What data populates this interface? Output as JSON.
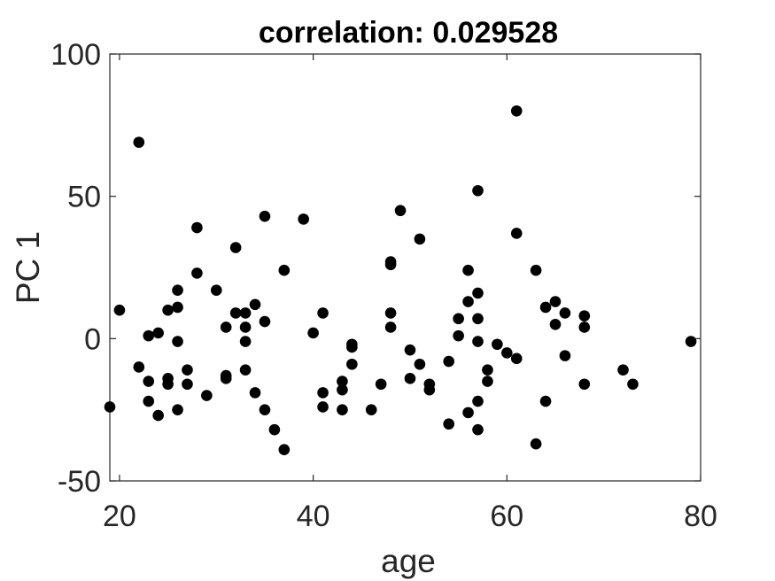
{
  "chart_data": {
    "type": "scatter",
    "title": "correlation: 0.029528",
    "xlabel": "age",
    "ylabel": "PC 1",
    "xlim": [
      19,
      80
    ],
    "ylim": [
      -50,
      100
    ],
    "xticks": [
      20,
      40,
      60,
      80
    ],
    "yticks": [
      -50,
      0,
      50,
      100
    ],
    "xtick_labels": [
      "20",
      "40",
      "60",
      "80"
    ],
    "ytick_labels": [
      "-50",
      "0",
      "50",
      "100"
    ],
    "marker_color": "#000000",
    "grid": false,
    "points": [
      {
        "x": 19,
        "y": -24
      },
      {
        "x": 20,
        "y": 10
      },
      {
        "x": 22,
        "y": 69
      },
      {
        "x": 22,
        "y": -10
      },
      {
        "x": 23,
        "y": 1
      },
      {
        "x": 23,
        "y": -15
      },
      {
        "x": 23,
        "y": -22
      },
      {
        "x": 24,
        "y": 2
      },
      {
        "x": 24,
        "y": -27
      },
      {
        "x": 25,
        "y": 10
      },
      {
        "x": 25,
        "y": -14
      },
      {
        "x": 25,
        "y": -16
      },
      {
        "x": 26,
        "y": 17
      },
      {
        "x": 26,
        "y": 11
      },
      {
        "x": 26,
        "y": -1
      },
      {
        "x": 26,
        "y": -25
      },
      {
        "x": 27,
        "y": -11
      },
      {
        "x": 27,
        "y": -16
      },
      {
        "x": 28,
        "y": 39
      },
      {
        "x": 28,
        "y": 23
      },
      {
        "x": 29,
        "y": -20
      },
      {
        "x": 30,
        "y": 17
      },
      {
        "x": 31,
        "y": 4
      },
      {
        "x": 31,
        "y": -13
      },
      {
        "x": 31,
        "y": -14
      },
      {
        "x": 32,
        "y": 32
      },
      {
        "x": 32,
        "y": 9
      },
      {
        "x": 33,
        "y": 9
      },
      {
        "x": 33,
        "y": 4
      },
      {
        "x": 33,
        "y": -1
      },
      {
        "x": 33,
        "y": -11
      },
      {
        "x": 34,
        "y": 12
      },
      {
        "x": 34,
        "y": -19
      },
      {
        "x": 35,
        "y": 43
      },
      {
        "x": 35,
        "y": 6
      },
      {
        "x": 35,
        "y": -25
      },
      {
        "x": 36,
        "y": -32
      },
      {
        "x": 37,
        "y": 24
      },
      {
        "x": 37,
        "y": -39
      },
      {
        "x": 39,
        "y": 42
      },
      {
        "x": 40,
        "y": 2
      },
      {
        "x": 41,
        "y": 9
      },
      {
        "x": 41,
        "y": -19
      },
      {
        "x": 41,
        "y": -24
      },
      {
        "x": 43,
        "y": -15
      },
      {
        "x": 43,
        "y": -18
      },
      {
        "x": 43,
        "y": -25
      },
      {
        "x": 44,
        "y": -2
      },
      {
        "x": 44,
        "y": -3
      },
      {
        "x": 44,
        "y": -9
      },
      {
        "x": 46,
        "y": -25
      },
      {
        "x": 47,
        "y": -16
      },
      {
        "x": 48,
        "y": 27
      },
      {
        "x": 48,
        "y": 26
      },
      {
        "x": 48,
        "y": 9
      },
      {
        "x": 48,
        "y": 4
      },
      {
        "x": 49,
        "y": 45
      },
      {
        "x": 50,
        "y": -4
      },
      {
        "x": 50,
        "y": -14
      },
      {
        "x": 51,
        "y": 35
      },
      {
        "x": 51,
        "y": -9
      },
      {
        "x": 52,
        "y": -16
      },
      {
        "x": 52,
        "y": -18
      },
      {
        "x": 54,
        "y": -8
      },
      {
        "x": 54,
        "y": -30
      },
      {
        "x": 55,
        "y": 7
      },
      {
        "x": 55,
        "y": 1
      },
      {
        "x": 56,
        "y": 24
      },
      {
        "x": 56,
        "y": 13
      },
      {
        "x": 56,
        "y": -26
      },
      {
        "x": 57,
        "y": 52
      },
      {
        "x": 57,
        "y": 16
      },
      {
        "x": 57,
        "y": 7
      },
      {
        "x": 57,
        "y": -1
      },
      {
        "x": 57,
        "y": -22
      },
      {
        "x": 57,
        "y": -32
      },
      {
        "x": 58,
        "y": -11
      },
      {
        "x": 58,
        "y": -15
      },
      {
        "x": 59,
        "y": -2
      },
      {
        "x": 60,
        "y": -5
      },
      {
        "x": 61,
        "y": 80
      },
      {
        "x": 61,
        "y": 37
      },
      {
        "x": 61,
        "y": -7
      },
      {
        "x": 63,
        "y": 24
      },
      {
        "x": 63,
        "y": -37
      },
      {
        "x": 64,
        "y": 11
      },
      {
        "x": 64,
        "y": -22
      },
      {
        "x": 65,
        "y": 13
      },
      {
        "x": 65,
        "y": 5
      },
      {
        "x": 66,
        "y": 9
      },
      {
        "x": 66,
        "y": -6
      },
      {
        "x": 68,
        "y": 8
      },
      {
        "x": 68,
        "y": 4
      },
      {
        "x": 68,
        "y": -16
      },
      {
        "x": 72,
        "y": -11
      },
      {
        "x": 73,
        "y": -16
      },
      {
        "x": 79,
        "y": -1
      }
    ]
  }
}
